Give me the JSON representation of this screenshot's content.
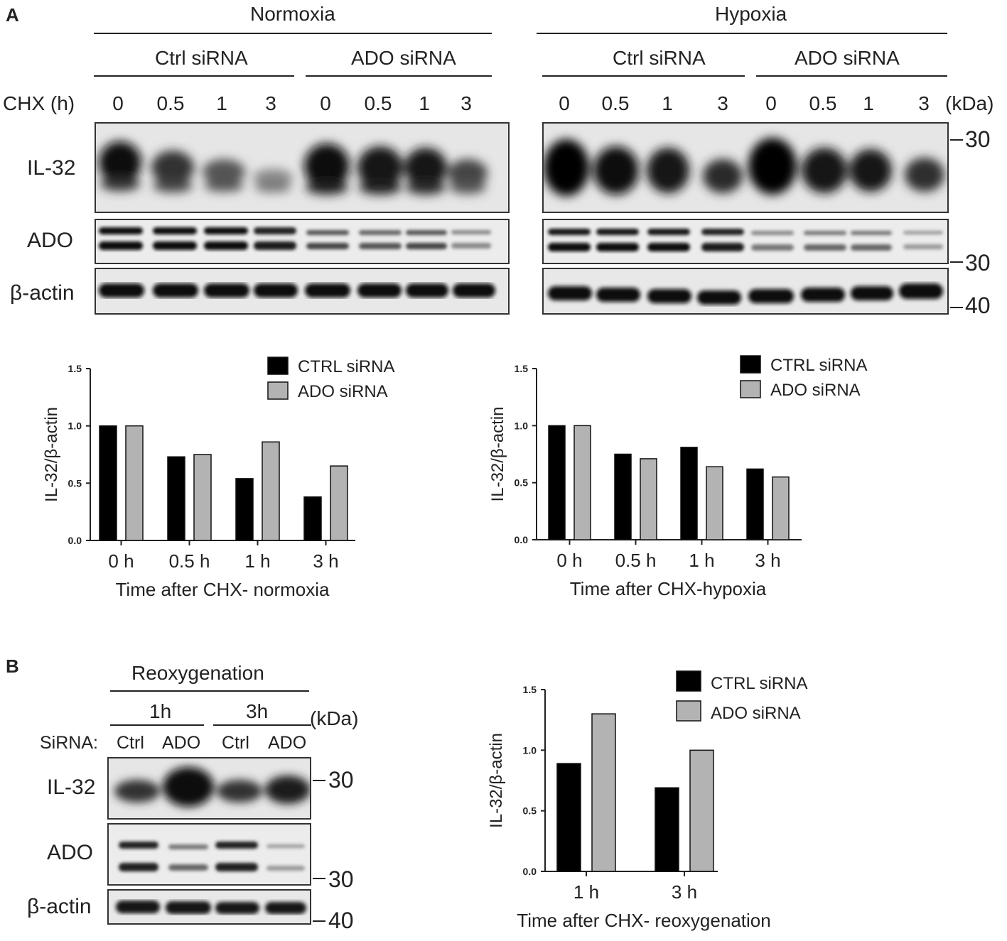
{
  "panel_a": {
    "letter": "A",
    "normoxia_label": "Normoxia",
    "hypoxia_label": "Hypoxia",
    "ctrl_sirna": "Ctrl siRNA",
    "ado_sirna": "ADO siRNA",
    "chx_label": "CHX  (h)",
    "kda_label": "(kDa)",
    "timepoints": [
      "0",
      "0.5",
      "1",
      "3"
    ],
    "rows": [
      "IL-32",
      "ADO",
      "β-actin"
    ],
    "markers": [
      "30",
      "30",
      "40"
    ]
  },
  "panel_b": {
    "letter": "B",
    "reox_label": "Reoxygenation",
    "t1": "1h",
    "t3": "3h",
    "kda_label": "(kDa)",
    "sirna_label": "SiRNA:",
    "lanes": [
      "Ctrl",
      "ADO",
      "Ctrl",
      "ADO"
    ],
    "rows": [
      "IL-32",
      "ADO",
      "β-actin"
    ],
    "markers": [
      "30",
      "30",
      "40"
    ]
  },
  "colors": {
    "ctrl": "#000000",
    "ado": "#b3b3b3",
    "axis": "#222222"
  },
  "chart_data": [
    {
      "type": "bar",
      "categories": [
        "0 h",
        "0.5 h",
        "1 h",
        "3 h"
      ],
      "series": [
        {
          "name": "CTRL siRNA",
          "values": [
            1.0,
            0.73,
            0.54,
            0.38
          ]
        },
        {
          "name": "ADO siRNA",
          "values": [
            1.0,
            0.75,
            0.86,
            0.65
          ]
        }
      ],
      "xlabel": "Time after CHX- normoxia",
      "ylabel": "IL-32/β-actin",
      "ylim": [
        0,
        1.5
      ],
      "yticks": [
        "0.0",
        "0.5",
        "1.0",
        "1.5"
      ],
      "legend": "top-right"
    },
    {
      "type": "bar",
      "categories": [
        "0 h",
        "0.5 h",
        "1 h",
        "3 h"
      ],
      "series": [
        {
          "name": "CTRL siRNA",
          "values": [
            1.0,
            0.75,
            0.81,
            0.62
          ]
        },
        {
          "name": "ADO siRNA",
          "values": [
            1.0,
            0.71,
            0.64,
            0.55
          ]
        }
      ],
      "xlabel": "Time after CHX-hypoxia",
      "ylabel": "IL-32/β-actin",
      "ylim": [
        0,
        1.5
      ],
      "yticks": [
        "0.0",
        "0.5",
        "1.0",
        "1.5"
      ],
      "legend": "top-right"
    },
    {
      "type": "bar",
      "categories": [
        "1 h",
        "3 h"
      ],
      "series": [
        {
          "name": "CTRL siRNA",
          "values": [
            0.89,
            0.69
          ]
        },
        {
          "name": "ADO siRNA",
          "values": [
            1.3,
            1.0
          ]
        }
      ],
      "xlabel": "Time after CHX- reoxygenation",
      "ylabel": "IL-32/β-actin",
      "ylim": [
        0,
        1.5
      ],
      "yticks": [
        "0.0",
        "0.5",
        "1.0",
        "1.5"
      ],
      "legend": "top-right"
    }
  ]
}
